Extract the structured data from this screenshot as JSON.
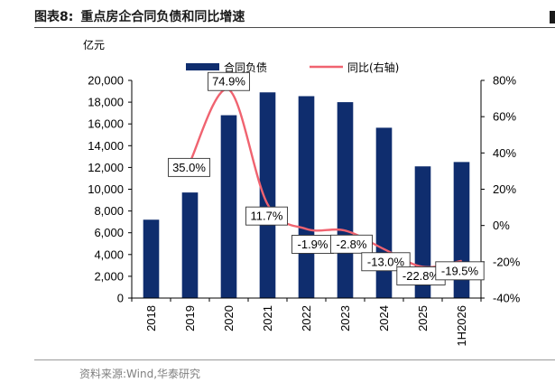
{
  "header": {
    "figure_label": "图表8:",
    "title": "重点房企合同负债和同比增速"
  },
  "footer": {
    "source": "资料来源:Wind,华泰研究"
  },
  "chart_data": {
    "type": "bar+line",
    "title": "重点房企合同负债和同比增速",
    "y_left_unit": "亿元",
    "categories": [
      "2018",
      "2019",
      "2020",
      "2021",
      "2022",
      "2023",
      "2024",
      "2025",
      "1H2026"
    ],
    "series": [
      {
        "name": "合同负债",
        "type": "bar",
        "axis": "left",
        "color": "#0f2d6e",
        "values": [
          7200,
          9700,
          16800,
          18900,
          18550,
          18000,
          15650,
          12100,
          12500
        ]
      },
      {
        "name": "同比(右轴)",
        "type": "line",
        "axis": "right",
        "color": "#f06370",
        "values": [
          null,
          35.0,
          74.9,
          11.7,
          -1.9,
          -2.8,
          -13.0,
          -22.8,
          -19.5
        ],
        "labels": [
          "",
          "35.0%",
          "74.9%",
          "11.7%",
          "-1.9%",
          "-2.8%",
          "-13.0%",
          "-22.8%",
          "-19.5%"
        ]
      }
    ],
    "y_left": {
      "min": 0,
      "max": 20000,
      "step": 2000,
      "tick_labels": [
        "0",
        "2,000",
        "4,000",
        "6,000",
        "8,000",
        "10,000",
        "12,000",
        "14,000",
        "16,000",
        "18,000",
        "20,000"
      ]
    },
    "y_right": {
      "min": -40,
      "max": 80,
      "step": 20,
      "tick_labels": [
        "-40%",
        "-20%",
        "0%",
        "20%",
        "40%",
        "60%",
        "80%"
      ]
    },
    "legend_position": "top-center",
    "grid": false
  }
}
